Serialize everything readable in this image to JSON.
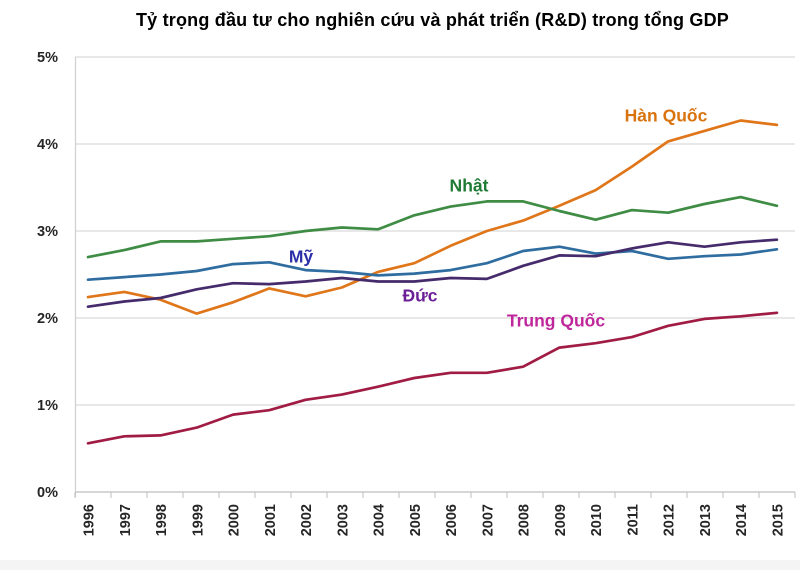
{
  "title": "Tỷ trọng đầu tư cho nghiên cứu và phát triển (R&D) trong tổng GDP",
  "chart_data": {
    "type": "line",
    "title": "Tỷ trọng đầu tư cho nghiên cứu và phát triển (R&D) trong tổng GDP",
    "xlabel": "",
    "ylabel": "",
    "ylim": [
      0,
      5
    ],
    "grid": true,
    "legend_position": "inline-labels",
    "yticks": [
      "0%",
      "1%",
      "2%",
      "3%",
      "4%",
      "5%"
    ],
    "x": [
      1996,
      1997,
      1998,
      1999,
      2000,
      2001,
      2002,
      2003,
      2004,
      2005,
      2006,
      2007,
      2008,
      2009,
      2010,
      2011,
      2012,
      2013,
      2014,
      2015
    ],
    "series": [
      {
        "name": "Hàn Quốc",
        "color": "#e0761a",
        "label_color": "#d9730d",
        "values": [
          2.24,
          2.3,
          2.21,
          2.05,
          2.18,
          2.34,
          2.25,
          2.35,
          2.53,
          2.63,
          2.83,
          3.0,
          3.12,
          3.29,
          3.47,
          3.74,
          4.03,
          4.15,
          4.27,
          4.22
        ]
      },
      {
        "name": "Nhật",
        "color": "#3f8c45",
        "label_color": "#1f7a34",
        "values": [
          2.7,
          2.78,
          2.88,
          2.88,
          2.91,
          2.94,
          3.0,
          3.04,
          3.02,
          3.18,
          3.28,
          3.34,
          3.34,
          3.23,
          3.13,
          3.24,
          3.21,
          3.31,
          3.39,
          3.29
        ]
      },
      {
        "name": "Mỹ",
        "color": "#2f6da0",
        "label_color": "#2a2fa8",
        "values": [
          2.44,
          2.47,
          2.5,
          2.54,
          2.62,
          2.64,
          2.55,
          2.53,
          2.49,
          2.51,
          2.55,
          2.63,
          2.77,
          2.82,
          2.74,
          2.77,
          2.68,
          2.71,
          2.73,
          2.79
        ]
      },
      {
        "name": "Đức",
        "color": "#452b6b",
        "label_color": "#6a1f96",
        "values": [
          2.13,
          2.19,
          2.23,
          2.33,
          2.4,
          2.39,
          2.42,
          2.46,
          2.42,
          2.42,
          2.46,
          2.45,
          2.6,
          2.72,
          2.71,
          2.8,
          2.87,
          2.82,
          2.87,
          2.9
        ]
      },
      {
        "name": "Trung Quốc",
        "color": "#a01c44",
        "label_color": "#c0269c",
        "values": [
          0.56,
          0.64,
          0.65,
          0.74,
          0.89,
          0.94,
          1.06,
          1.12,
          1.21,
          1.31,
          1.37,
          1.37,
          1.44,
          1.66,
          1.71,
          1.78,
          1.91,
          1.99,
          2.02,
          2.06
        ]
      }
    ]
  }
}
